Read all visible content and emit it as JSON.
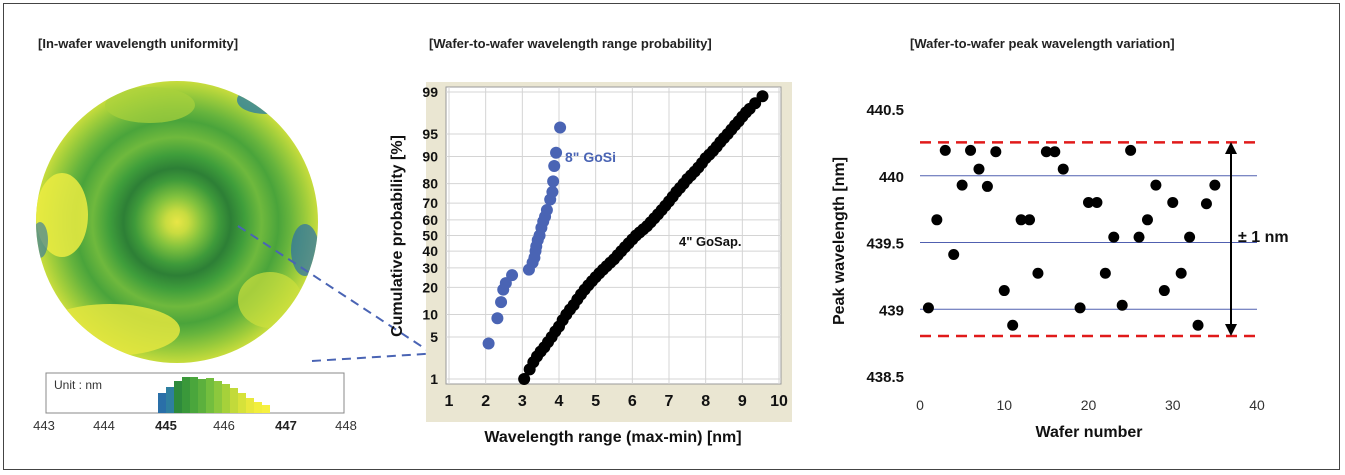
{
  "panels": {
    "left": {
      "title": "[In-wafer wavelength uniformity]"
    },
    "middle": {
      "title": "[Wafer-to-wafer wavelength range probability]"
    },
    "right": {
      "title": "[Wafer-to-wafer peak wavelength variation]"
    }
  },
  "wafer_map": {
    "colorbar": {
      "unit_label": "Unit : nm",
      "ticks": [
        "443",
        "444",
        "445",
        "446",
        "447",
        "448"
      ],
      "bold_ticks": [
        "445",
        "447"
      ]
    },
    "colors": [
      "#2a6fa8",
      "#2e8a3c",
      "#4aa63c",
      "#73be3e",
      "#a6d13a",
      "#d6e23a",
      "#f2ee3c"
    ]
  },
  "chart_data": [
    {
      "type": "scatter",
      "xlabel": "Wavelength range (max-min)  [nm]",
      "ylabel": "Cumulative probability [%]",
      "x_ticks": [
        "1",
        "2",
        "3",
        "4",
        "5",
        "6",
        "7",
        "8",
        "9",
        "10"
      ],
      "y_ticks": [
        "1",
        "5",
        "10",
        "20",
        "30",
        "40",
        "50",
        "60",
        "70",
        "80",
        "90",
        "95",
        "99"
      ],
      "xlim": [
        1,
        10
      ],
      "ylim_percent": [
        1,
        99
      ],
      "y_scale": "normal-probability",
      "grid": true,
      "series": [
        {
          "name": "8\" GoSi",
          "color": "#4a64b4",
          "x": [
            2.08,
            2.32,
            2.42,
            2.48,
            2.55,
            2.72,
            3.18,
            3.28,
            3.33,
            3.36,
            3.38,
            3.42,
            3.47,
            3.52,
            3.57,
            3.62,
            3.67,
            3.76,
            3.82,
            3.84,
            3.87,
            3.92,
            4.03
          ],
          "y": [
            4,
            9,
            14,
            19,
            22,
            26,
            29,
            33,
            36,
            40,
            43,
            47,
            50,
            55,
            59,
            62,
            66,
            72,
            76,
            81,
            87,
            91,
            96
          ]
        },
        {
          "name": "4\" GoSap.",
          "color": "#000000",
          "x": [
            3.05,
            3.2,
            3.3,
            3.4,
            3.5,
            3.6,
            3.7,
            3.8,
            3.9,
            4.0,
            4.1,
            4.2,
            4.3,
            4.4,
            4.5,
            4.6,
            4.7,
            4.8,
            4.9,
            5.0,
            5.1,
            5.2,
            5.3,
            5.4,
            5.5,
            5.6,
            5.7,
            5.8,
            5.9,
            6.0,
            6.1,
            6.2,
            6.3,
            6.4,
            6.5,
            6.6,
            6.7,
            6.8,
            6.9,
            7.0,
            7.1,
            7.2,
            7.3,
            7.4,
            7.5,
            7.6,
            7.7,
            7.8,
            7.9,
            8.0,
            8.1,
            8.2,
            8.3,
            8.4,
            8.5,
            8.6,
            8.7,
            8.8,
            8.9,
            9.0,
            9.1,
            9.2,
            9.35,
            9.55
          ],
          "y": [
            1,
            1.5,
            2,
            2.5,
            3,
            3.5,
            4.2,
            5,
            6,
            7,
            8.5,
            10,
            11.5,
            13,
            15,
            17,
            19,
            21,
            23,
            25,
            27,
            29,
            31,
            33,
            35,
            37.5,
            40,
            42.5,
            45,
            47.5,
            50,
            52,
            54,
            56,
            58.5,
            61,
            63.5,
            66,
            68.5,
            71,
            73.5,
            76,
            78,
            80,
            82,
            83.5,
            85,
            86.5,
            88,
            89.5,
            90.5,
            91.5,
            92.5,
            93.5,
            94.3,
            95,
            95.7,
            96.3,
            96.8,
            97.3,
            97.7,
            98,
            98.4,
            98.8
          ]
        }
      ]
    },
    {
      "type": "scatter",
      "xlabel": "Wafer number",
      "ylabel": "Peak wavelength [nm]",
      "x_ticks": [
        "0",
        "10",
        "20",
        "30",
        "40"
      ],
      "y_ticks": [
        "438.5",
        "439",
        "439.5",
        "440",
        "440.5"
      ],
      "xlim": [
        0,
        40
      ],
      "ylim": [
        438.5,
        440.5
      ],
      "gridlines_y": [
        439,
        439.5,
        440
      ],
      "grid_color": "#5060b0",
      "limit_lines": [
        438.8,
        440.25
      ],
      "limit_color": "#e01a1a",
      "annotation": "± 1 nm",
      "series": [
        {
          "color": "#000000",
          "x": [
            1,
            2,
            3,
            4,
            5,
            6,
            7,
            8,
            9,
            10,
            11,
            12,
            13,
            14,
            15,
            16,
            17,
            19,
            20,
            21,
            22,
            23,
            24,
            25,
            26,
            27,
            28,
            29,
            30,
            31,
            32,
            33,
            34,
            35
          ],
          "y": [
            439.01,
            439.67,
            440.19,
            439.41,
            439.93,
            440.19,
            440.05,
            439.92,
            440.18,
            439.14,
            438.88,
            439.67,
            439.67,
            439.27,
            440.18,
            440.18,
            440.05,
            439.01,
            439.8,
            439.8,
            439.27,
            439.54,
            439.03,
            440.19,
            439.54,
            439.67,
            439.93,
            439.14,
            439.8,
            439.27,
            439.54,
            438.88,
            439.79,
            439.93
          ]
        }
      ]
    }
  ]
}
